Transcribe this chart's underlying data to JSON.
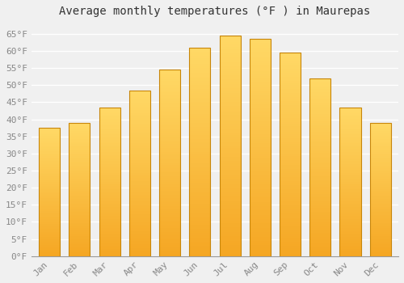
{
  "title": "Average monthly temperatures (°F ) in Maurepas",
  "months": [
    "Jan",
    "Feb",
    "Mar",
    "Apr",
    "May",
    "Jun",
    "Jul",
    "Aug",
    "Sep",
    "Oct",
    "Nov",
    "Dec"
  ],
  "values": [
    37.5,
    39.0,
    43.5,
    48.5,
    54.5,
    61.0,
    64.5,
    63.5,
    59.5,
    52.0,
    43.5,
    39.0
  ],
  "bar_color_bottom": "#F5A623",
  "bar_color_top": "#FFD966",
  "bar_edge_color": "#C8860A",
  "background_color": "#f0f0f0",
  "grid_color": "#ffffff",
  "ylim": [
    0,
    68
  ],
  "yticks": [
    0,
    5,
    10,
    15,
    20,
    25,
    30,
    35,
    40,
    45,
    50,
    55,
    60,
    65
  ],
  "title_fontsize": 10,
  "tick_fontsize": 8,
  "bar_width": 0.7
}
